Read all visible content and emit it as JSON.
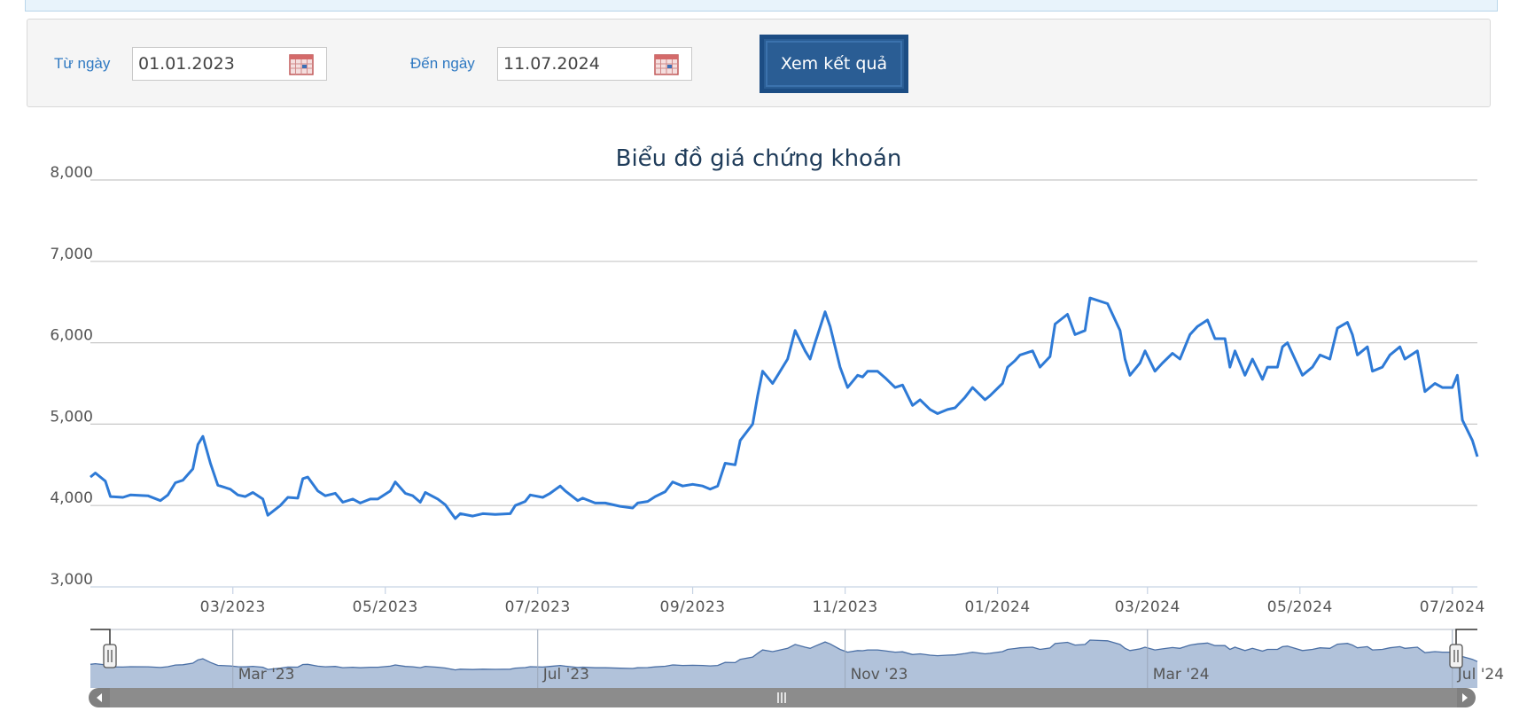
{
  "filter": {
    "from_label": "Từ ngày",
    "from_value": "01.01.2023",
    "to_label": "Đến ngày",
    "to_value": "11.07.2024",
    "submit_label": "Xem kết quả"
  },
  "colors": {
    "accent": "#2f79c2",
    "line": "#2e7ad6",
    "button": "#2a5d94",
    "navigator_fill": "#b1c2da",
    "navigator_line": "#4a6fa5",
    "scrollbar": "#808080"
  },
  "icons": {
    "calendar": "calendar-icon"
  },
  "chart_data": {
    "type": "line",
    "title": "Biểu đồ giá chứng khoán",
    "xlabel": "",
    "ylabel": "",
    "ylim": [
      3000,
      8000
    ],
    "yticks": [
      "3,000",
      "4,000",
      "5,000",
      "6,000",
      "7,000",
      "8,000"
    ],
    "xlim": [
      "2023-01-03",
      "2024-07-11"
    ],
    "xticks": [
      {
        "date": "2023-03-01",
        "label": "03/2023"
      },
      {
        "date": "2023-05-01",
        "label": "05/2023"
      },
      {
        "date": "2023-07-01",
        "label": "07/2023"
      },
      {
        "date": "2023-09-01",
        "label": "09/2023"
      },
      {
        "date": "2023-11-01",
        "label": "11/2023"
      },
      {
        "date": "2024-01-01",
        "label": "01/2024"
      },
      {
        "date": "2024-03-01",
        "label": "03/2024"
      },
      {
        "date": "2024-05-01",
        "label": "05/2024"
      },
      {
        "date": "2024-07-01",
        "label": "07/2024"
      }
    ],
    "grid": true,
    "legend": "none",
    "series": [
      {
        "name": "",
        "points": [
          [
            "2023-01-03",
            4350
          ],
          [
            "2023-01-05",
            4400
          ],
          [
            "2023-01-09",
            4300
          ],
          [
            "2023-01-11",
            4110
          ],
          [
            "2023-01-16",
            4100
          ],
          [
            "2023-01-19",
            4130
          ],
          [
            "2023-01-26",
            4120
          ],
          [
            "2023-01-31",
            4060
          ],
          [
            "2023-02-03",
            4130
          ],
          [
            "2023-02-06",
            4280
          ],
          [
            "2023-02-09",
            4310
          ],
          [
            "2023-02-13",
            4450
          ],
          [
            "2023-02-15",
            4750
          ],
          [
            "2023-02-17",
            4850
          ],
          [
            "2023-02-20",
            4520
          ],
          [
            "2023-02-23",
            4250
          ],
          [
            "2023-02-28",
            4200
          ],
          [
            "2023-03-03",
            4130
          ],
          [
            "2023-03-06",
            4110
          ],
          [
            "2023-03-09",
            4160
          ],
          [
            "2023-03-13",
            4080
          ],
          [
            "2023-03-15",
            3880
          ],
          [
            "2023-03-20",
            4000
          ],
          [
            "2023-03-23",
            4100
          ],
          [
            "2023-03-27",
            4090
          ],
          [
            "2023-03-29",
            4330
          ],
          [
            "2023-03-31",
            4350
          ],
          [
            "2023-04-04",
            4180
          ],
          [
            "2023-04-07",
            4120
          ],
          [
            "2023-04-11",
            4150
          ],
          [
            "2023-04-14",
            4040
          ],
          [
            "2023-04-18",
            4080
          ],
          [
            "2023-04-21",
            4030
          ],
          [
            "2023-04-25",
            4080
          ],
          [
            "2023-04-28",
            4080
          ],
          [
            "2023-05-03",
            4180
          ],
          [
            "2023-05-05",
            4290
          ],
          [
            "2023-05-09",
            4150
          ],
          [
            "2023-05-12",
            4120
          ],
          [
            "2023-05-15",
            4040
          ],
          [
            "2023-05-17",
            4160
          ],
          [
            "2023-05-22",
            4080
          ],
          [
            "2023-05-25",
            4010
          ],
          [
            "2023-05-29",
            3840
          ],
          [
            "2023-05-31",
            3900
          ],
          [
            "2023-06-05",
            3870
          ],
          [
            "2023-06-09",
            3900
          ],
          [
            "2023-06-14",
            3890
          ],
          [
            "2023-06-20",
            3900
          ],
          [
            "2023-06-22",
            4000
          ],
          [
            "2023-06-26",
            4050
          ],
          [
            "2023-06-28",
            4130
          ],
          [
            "2023-07-03",
            4100
          ],
          [
            "2023-07-06",
            4150
          ],
          [
            "2023-07-10",
            4240
          ],
          [
            "2023-07-12",
            4180
          ],
          [
            "2023-07-17",
            4060
          ],
          [
            "2023-07-19",
            4090
          ],
          [
            "2023-07-24",
            4030
          ],
          [
            "2023-07-28",
            4030
          ],
          [
            "2023-08-03",
            3990
          ],
          [
            "2023-08-08",
            3970
          ],
          [
            "2023-08-10",
            4030
          ],
          [
            "2023-08-14",
            4050
          ],
          [
            "2023-08-17",
            4110
          ],
          [
            "2023-08-21",
            4170
          ],
          [
            "2023-08-24",
            4290
          ],
          [
            "2023-08-28",
            4240
          ],
          [
            "2023-09-01",
            4260
          ],
          [
            "2023-09-05",
            4240
          ],
          [
            "2023-09-08",
            4200
          ],
          [
            "2023-09-11",
            4240
          ],
          [
            "2023-09-14",
            4520
          ],
          [
            "2023-09-18",
            4500
          ],
          [
            "2023-09-20",
            4800
          ],
          [
            "2023-09-25",
            5000
          ],
          [
            "2023-09-27",
            5350
          ],
          [
            "2023-09-29",
            5650
          ],
          [
            "2023-10-03",
            5500
          ],
          [
            "2023-10-05",
            5600
          ],
          [
            "2023-10-09",
            5800
          ],
          [
            "2023-10-12",
            6150
          ],
          [
            "2023-10-16",
            5900
          ],
          [
            "2023-10-18",
            5800
          ],
          [
            "2023-10-20",
            6000
          ],
          [
            "2023-10-24",
            6380
          ],
          [
            "2023-10-26",
            6200
          ],
          [
            "2023-10-30",
            5700
          ],
          [
            "2023-11-02",
            5450
          ],
          [
            "2023-11-06",
            5600
          ],
          [
            "2023-11-08",
            5580
          ],
          [
            "2023-11-10",
            5650
          ],
          [
            "2023-11-14",
            5650
          ],
          [
            "2023-11-17",
            5570
          ],
          [
            "2023-11-21",
            5450
          ],
          [
            "2023-11-24",
            5480
          ],
          [
            "2023-11-28",
            5230
          ],
          [
            "2023-12-01",
            5300
          ],
          [
            "2023-12-05",
            5180
          ],
          [
            "2023-12-08",
            5130
          ],
          [
            "2023-12-12",
            5180
          ],
          [
            "2023-12-15",
            5200
          ],
          [
            "2023-12-19",
            5330
          ],
          [
            "2023-12-22",
            5450
          ],
          [
            "2023-12-27",
            5300
          ],
          [
            "2023-12-29",
            5350
          ],
          [
            "2024-01-03",
            5500
          ],
          [
            "2024-01-05",
            5700
          ],
          [
            "2024-01-08",
            5780
          ],
          [
            "2024-01-10",
            5850
          ],
          [
            "2024-01-15",
            5900
          ],
          [
            "2024-01-18",
            5700
          ],
          [
            "2024-01-22",
            5830
          ],
          [
            "2024-01-24",
            6230
          ],
          [
            "2024-01-29",
            6350
          ],
          [
            "2024-02-01",
            6100
          ],
          [
            "2024-02-05",
            6150
          ],
          [
            "2024-02-07",
            6550
          ],
          [
            "2024-02-14",
            6480
          ],
          [
            "2024-02-19",
            6150
          ],
          [
            "2024-02-21",
            5800
          ],
          [
            "2024-02-23",
            5600
          ],
          [
            "2024-02-27",
            5750
          ],
          [
            "2024-02-29",
            5900
          ],
          [
            "2024-03-04",
            5650
          ],
          [
            "2024-03-07",
            5750
          ],
          [
            "2024-03-11",
            5870
          ],
          [
            "2024-03-14",
            5800
          ],
          [
            "2024-03-18",
            6100
          ],
          [
            "2024-03-21",
            6200
          ],
          [
            "2024-03-25",
            6280
          ],
          [
            "2024-03-28",
            6050
          ],
          [
            "2024-04-01",
            6050
          ],
          [
            "2024-04-03",
            5700
          ],
          [
            "2024-04-05",
            5900
          ],
          [
            "2024-04-09",
            5600
          ],
          [
            "2024-04-12",
            5800
          ],
          [
            "2024-04-16",
            5550
          ],
          [
            "2024-04-18",
            5700
          ],
          [
            "2024-04-22",
            5700
          ],
          [
            "2024-04-24",
            5950
          ],
          [
            "2024-04-26",
            6000
          ],
          [
            "2024-05-02",
            5600
          ],
          [
            "2024-05-06",
            5700
          ],
          [
            "2024-05-09",
            5850
          ],
          [
            "2024-05-13",
            5800
          ],
          [
            "2024-05-16",
            6180
          ],
          [
            "2024-05-20",
            6250
          ],
          [
            "2024-05-22",
            6100
          ],
          [
            "2024-05-24",
            5850
          ],
          [
            "2024-05-28",
            5950
          ],
          [
            "2024-05-30",
            5650
          ],
          [
            "2024-06-03",
            5700
          ],
          [
            "2024-06-06",
            5850
          ],
          [
            "2024-06-10",
            5950
          ],
          [
            "2024-06-12",
            5800
          ],
          [
            "2024-06-17",
            5900
          ],
          [
            "2024-06-20",
            5400
          ],
          [
            "2024-06-24",
            5500
          ],
          [
            "2024-06-27",
            5450
          ],
          [
            "2024-07-01",
            5450
          ],
          [
            "2024-07-03",
            5600
          ],
          [
            "2024-07-05",
            5050
          ],
          [
            "2024-07-09",
            4800
          ],
          [
            "2024-07-11",
            4600
          ]
        ]
      }
    ],
    "navigator": {
      "xtick_labels": [
        "Mar '23",
        "Jul '23",
        "Nov '23",
        "Mar '24",
        "Jul '24"
      ]
    }
  }
}
